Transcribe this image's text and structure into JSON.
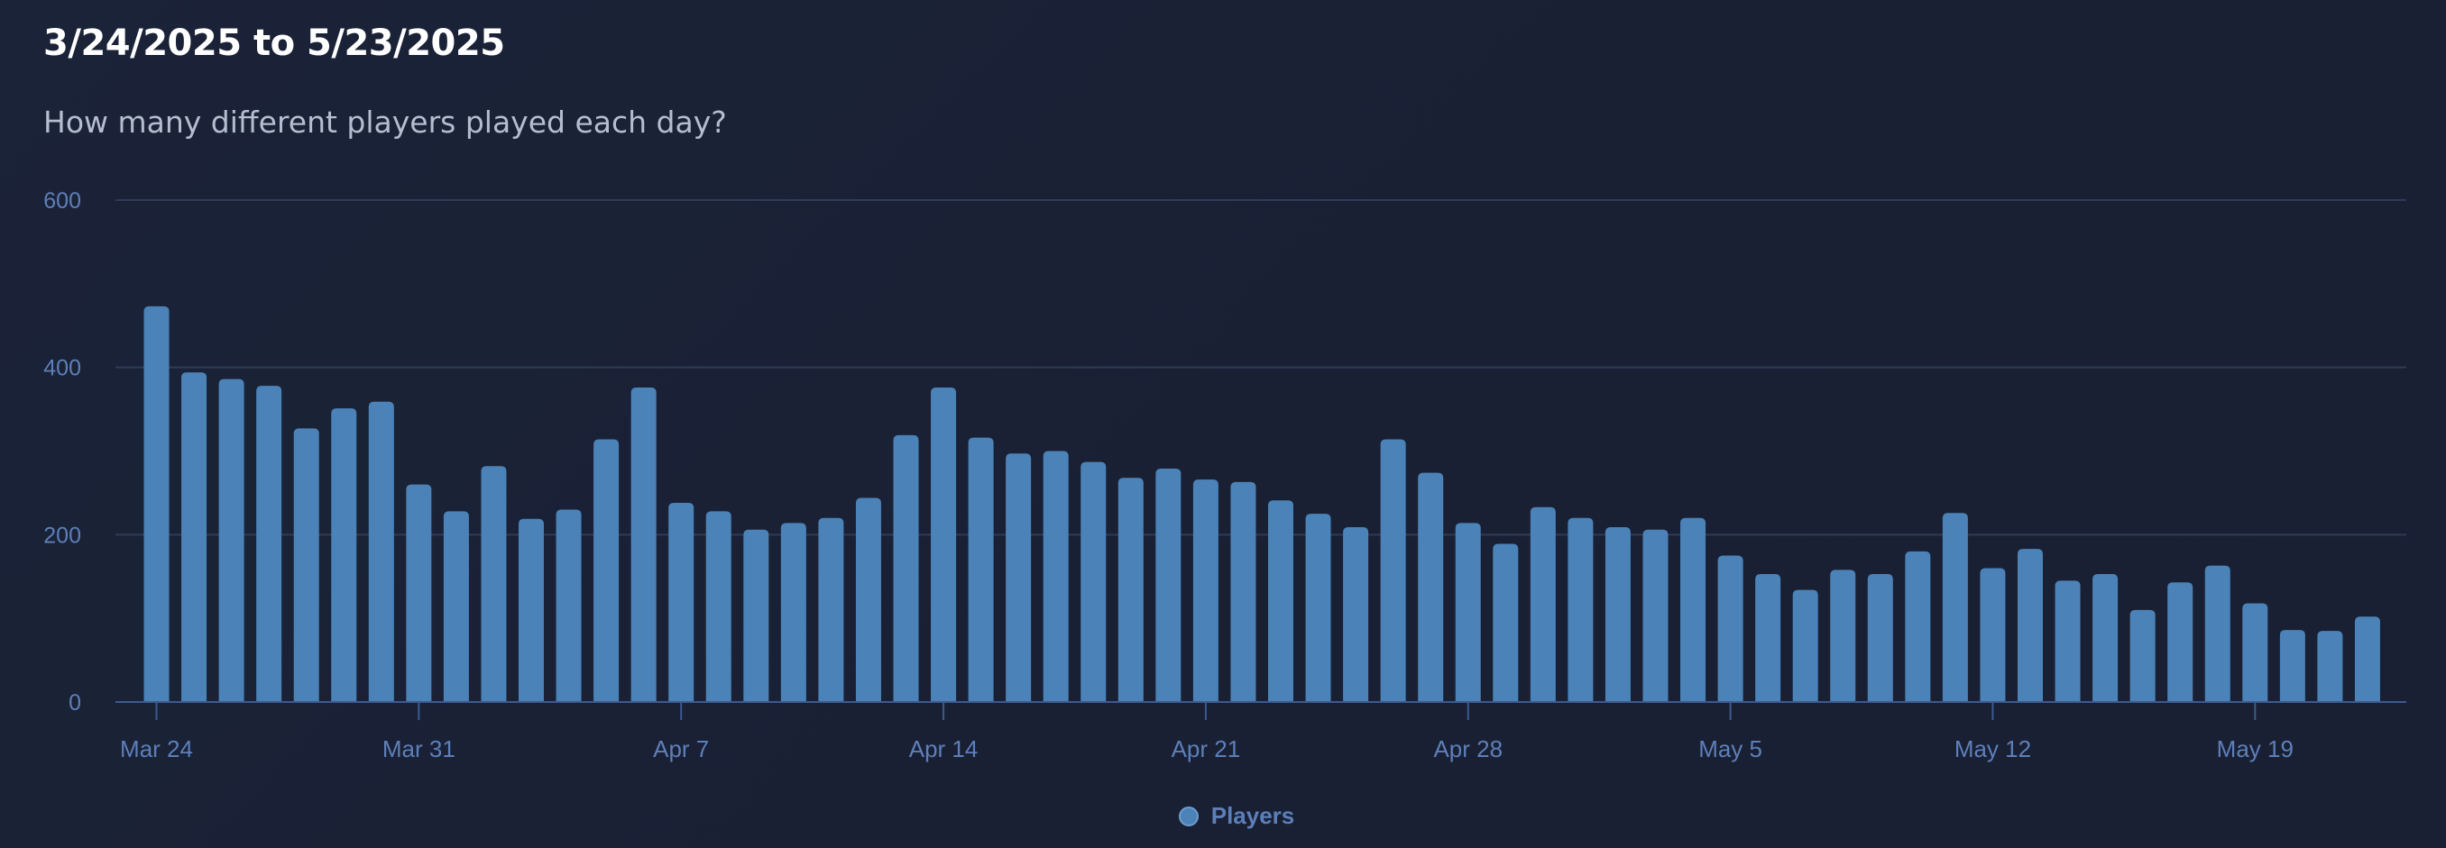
{
  "header": {
    "title": "3/24/2025 to 5/23/2025",
    "subtitle": "How many different players played each day?"
  },
  "colors": {
    "bar": "#4b83b8",
    "grid": "#2f3b58",
    "axis": "#3c5a8f",
    "tick_text": "#5d7fb9"
  },
  "chart_data": {
    "type": "bar",
    "ylim": [
      0,
      600
    ],
    "yticks": [
      0,
      200,
      400,
      600
    ],
    "grid": true,
    "legend_position": "bottom-center",
    "xtick_labels": [
      {
        "index": 0,
        "label": "Mar 24"
      },
      {
        "index": 7,
        "label": "Mar 31"
      },
      {
        "index": 14,
        "label": "Apr 7"
      },
      {
        "index": 21,
        "label": "Apr 14"
      },
      {
        "index": 28,
        "label": "Apr 21"
      },
      {
        "index": 35,
        "label": "Apr 28"
      },
      {
        "index": 42,
        "label": "May 5"
      },
      {
        "index": 49,
        "label": "May 12"
      },
      {
        "index": 56,
        "label": "May 19"
      }
    ],
    "series": [
      {
        "name": "Players",
        "values": [
          473,
          394,
          386,
          378,
          327,
          351,
          359,
          260,
          228,
          282,
          219,
          230,
          314,
          376,
          238,
          228,
          206,
          214,
          220,
          244,
          319,
          376,
          316,
          297,
          300,
          287,
          268,
          279,
          266,
          263,
          241,
          225,
          209,
          314,
          274,
          214,
          189,
          233,
          220,
          209,
          206,
          220,
          175,
          153,
          134,
          158,
          153,
          180,
          226,
          160,
          183,
          145,
          153,
          110,
          143,
          163,
          118,
          86,
          85,
          102
        ]
      }
    ]
  }
}
